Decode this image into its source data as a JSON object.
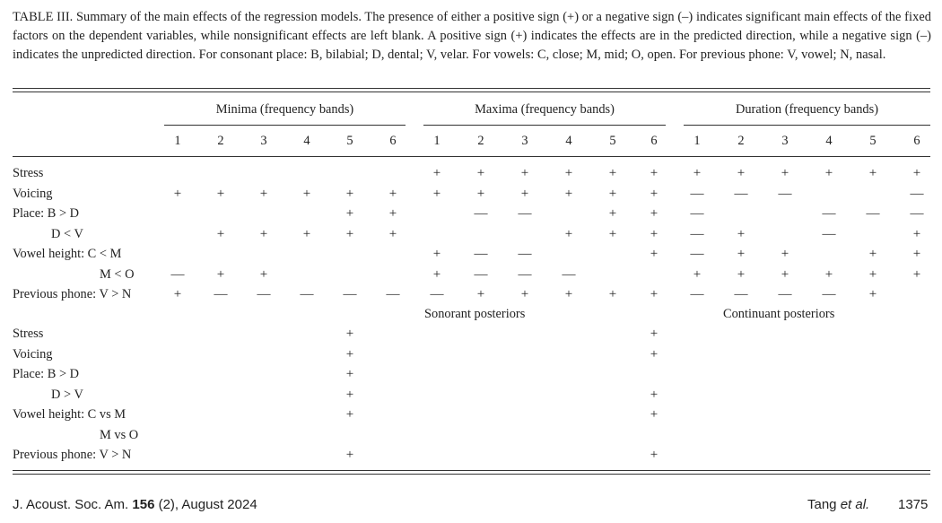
{
  "caption": "TABLE III. Summary of the main effects of the regression models. The presence of either a positive sign (+) or a negative sign (–) indicates significant main effects of the fixed factors on the dependent variables, while nonsignificant effects are left blank. A positive sign (+) indicates the effects are in the predicted direction, while a negative sign (–) indicates the unpredicted direction. For consonant place: B, bilabial; D, dental; V, velar. For vowels: C, close; M, mid; O, open. For previous phone: V, vowel; N, nasal.",
  "table": {
    "groups": [
      "Minima (frequency bands)",
      "Maxima (frequency bands)",
      "Duration (frequency bands)"
    ],
    "bands": [
      "1",
      "2",
      "3",
      "4",
      "5",
      "6"
    ],
    "section1_rows": [
      {
        "label": "Stress",
        "indent": 0,
        "cells": [
          "",
          "",
          "",
          "",
          "",
          "",
          "+",
          "+",
          "+",
          "+",
          "+",
          "+",
          "+",
          "+",
          "+",
          "+",
          "+",
          "+"
        ]
      },
      {
        "label": "Voicing",
        "indent": 0,
        "cells": [
          "+",
          "+",
          "+",
          "+",
          "+",
          "+",
          "+",
          "+",
          "+",
          "+",
          "+",
          "+",
          "—",
          "—",
          "—",
          "",
          "",
          "—"
        ]
      },
      {
        "label": "Place: B > D",
        "indent": 0,
        "cells": [
          "",
          "",
          "",
          "",
          "+",
          "+",
          "",
          "—",
          "—",
          "",
          "+",
          "+",
          "—",
          "",
          "",
          "—",
          "—",
          "—"
        ]
      },
      {
        "label": "D < V",
        "indent": 1,
        "cells": [
          "",
          "+",
          "+",
          "+",
          "+",
          "+",
          "",
          "",
          "",
          "+",
          "+",
          "+",
          "—",
          "+",
          "",
          "—",
          "",
          "+"
        ]
      },
      {
        "label": "Vowel height: C < M",
        "indent": 0,
        "cells": [
          "",
          "",
          "",
          "",
          "",
          "",
          "+",
          "—",
          "—",
          "",
          "",
          "+",
          "—",
          "+",
          "+",
          "",
          "+",
          "+"
        ]
      },
      {
        "label": "M < O",
        "indent": 2,
        "cells": [
          "—",
          "+",
          "+",
          "",
          "",
          "",
          "+",
          "—",
          "—",
          "—",
          "",
          "",
          "+",
          "+",
          "+",
          "+",
          "+",
          "+"
        ]
      },
      {
        "label": "Previous phone: V > N",
        "indent": 0,
        "cells": [
          "+",
          "—",
          "—",
          "—",
          "—",
          "—",
          "—",
          "+",
          "+",
          "+",
          "+",
          "+",
          "—",
          "—",
          "—",
          "—",
          "+",
          ""
        ]
      }
    ],
    "subheads": [
      "Sonorant posteriors",
      "Continuant posteriors"
    ],
    "section2_rows": [
      {
        "label": "Stress",
        "indent": 0,
        "cells": [
          "",
          "",
          "",
          "",
          "+",
          "",
          "",
          "",
          "",
          "",
          "",
          "+"
        ]
      },
      {
        "label": "Voicing",
        "indent": 0,
        "cells": [
          "",
          "",
          "",
          "",
          "+",
          "",
          "",
          "",
          "",
          "",
          "",
          "+"
        ]
      },
      {
        "label": "Place: B > D",
        "indent": 0,
        "cells": [
          "",
          "",
          "",
          "",
          "+",
          "",
          "",
          "",
          "",
          "",
          "",
          ""
        ]
      },
      {
        "label": "D > V",
        "indent": 1,
        "cells": [
          "",
          "",
          "",
          "",
          "+",
          "",
          "",
          "",
          "",
          "",
          "",
          "+"
        ]
      },
      {
        "label": "Vowel height: C vs M",
        "indent": 0,
        "cells": [
          "",
          "",
          "",
          "",
          "+",
          "",
          "",
          "",
          "",
          "",
          "",
          "+"
        ]
      },
      {
        "label": "M vs O",
        "indent": 2,
        "cells": [
          "",
          "",
          "",
          "",
          "",
          "",
          "",
          "",
          "",
          "",
          "",
          ""
        ]
      },
      {
        "label": "Previous phone: V > N",
        "indent": 0,
        "cells": [
          "",
          "",
          "",
          "",
          "+",
          "",
          "",
          "",
          "",
          "",
          "",
          "+"
        ]
      }
    ]
  },
  "footer": {
    "journal_prefix": "J. Acoust. Soc. Am. ",
    "volume": "156",
    "issue_date": " (2), August 2024",
    "author_name": "Tang ",
    "author_etal": "et al.",
    "page_number": "1375"
  }
}
